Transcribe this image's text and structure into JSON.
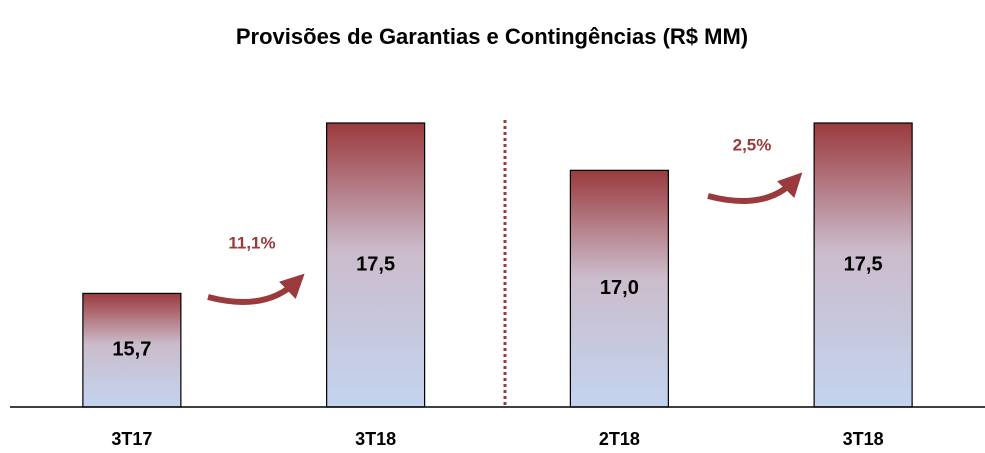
{
  "chart_data": {
    "type": "bar",
    "title": "Provisões de Garantias e Contingências (R$ MM)",
    "categories": [
      "3T17",
      "3T18",
      "2T18",
      "3T18"
    ],
    "values": [
      15.7,
      17.5,
      17.0,
      17.5
    ],
    "value_labels": [
      "15,7",
      "17,5",
      "17,0",
      "17,5"
    ],
    "ylim": [
      14.5,
      17.5
    ],
    "annotations": [
      "11,1%",
      "2,5%"
    ]
  }
}
